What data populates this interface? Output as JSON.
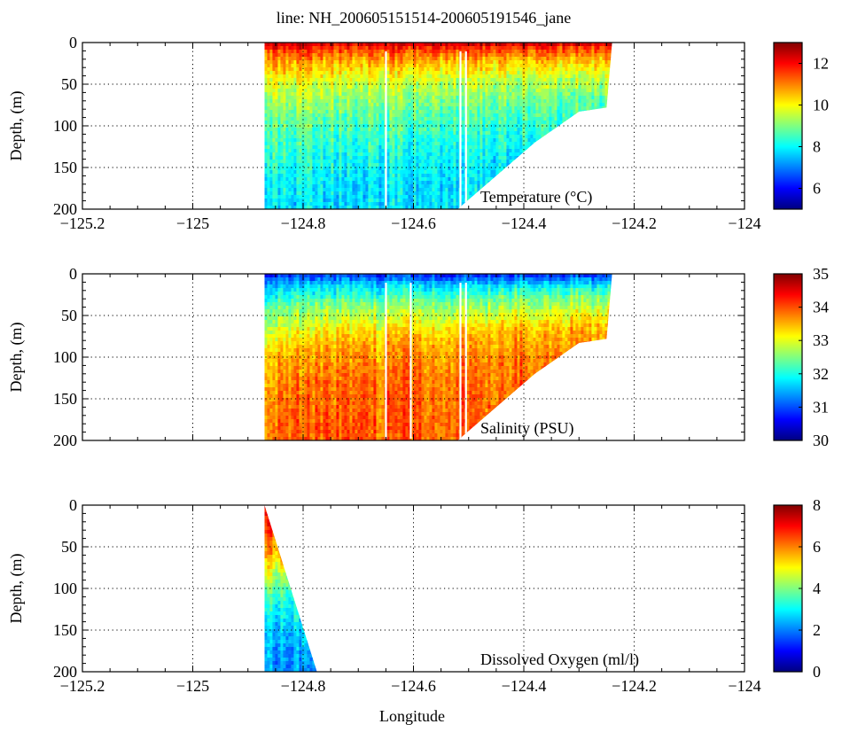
{
  "figure": {
    "title": "line: NH_200605151514-200605191546_jane",
    "xlabel": "Longitude"
  },
  "chart_data": [
    {
      "type": "heatmap",
      "id": "temperature",
      "variable_label": "Temperature (°C)",
      "ylabel": "Depth, (m)",
      "xlim": [
        -125.2,
        -124.0
      ],
      "ylim": [
        0,
        200
      ],
      "xticks": [
        -125.2,
        -125,
        -124.8,
        -124.6,
        -124.4,
        -124.2,
        -124
      ],
      "xtick_labels": [
        "−125.2",
        "−125",
        "−124.8",
        "−124.6",
        "−124.4",
        "−124.2",
        "−124"
      ],
      "yticks": [
        0,
        50,
        100,
        150,
        200
      ],
      "ytick_labels": [
        "0",
        "50",
        "100",
        "150",
        "200"
      ],
      "colorbar": {
        "min": 5,
        "max": 13,
        "ticks": [
          6,
          8,
          10,
          12
        ],
        "tick_labels": [
          "6",
          "8",
          "10",
          "12"
        ],
        "colormap": "jet"
      },
      "data_extent": {
        "lon_min": -124.87,
        "lon_max": -124.24,
        "bottom_profile": [
          [
            -124.87,
            200
          ],
          [
            -124.52,
            200
          ],
          [
            -124.45,
            160
          ],
          [
            -124.38,
            120
          ],
          [
            -124.3,
            83
          ],
          [
            -124.25,
            78
          ],
          [
            -124.24,
            0
          ]
        ]
      },
      "depth_profile": [
        [
          0,
          12.5
        ],
        [
          10,
          11.5
        ],
        [
          30,
          10.5
        ],
        [
          60,
          9.5
        ],
        [
          100,
          8.8
        ],
        [
          150,
          8.2
        ],
        [
          200,
          7.8
        ]
      ],
      "gaps": [
        -124.65,
        -124.515,
        -124.505
      ],
      "grid": true
    },
    {
      "type": "heatmap",
      "id": "salinity",
      "variable_label": "Salinity (PSU)",
      "ylabel": "Depth, (m)",
      "xlim": [
        -125.2,
        -124.0
      ],
      "ylim": [
        0,
        200
      ],
      "xticks": [
        -125.2,
        -125,
        -124.8,
        -124.6,
        -124.4,
        -124.2,
        -124
      ],
      "yticks": [
        0,
        50,
        100,
        150,
        200
      ],
      "ytick_labels": [
        "0",
        "50",
        "100",
        "150",
        "200"
      ],
      "colorbar": {
        "min": 30,
        "max": 35,
        "ticks": [
          30,
          31,
          32,
          33,
          34,
          35
        ],
        "tick_labels": [
          "30",
          "31",
          "32",
          "33",
          "34",
          "35"
        ],
        "colormap": "jet"
      },
      "data_extent": {
        "lon_min": -124.87,
        "lon_max": -124.24,
        "bottom_profile": [
          [
            -124.87,
            200
          ],
          [
            -124.52,
            200
          ],
          [
            -124.45,
            160
          ],
          [
            -124.38,
            120
          ],
          [
            -124.3,
            83
          ],
          [
            -124.25,
            78
          ],
          [
            -124.24,
            0
          ]
        ]
      },
      "depth_profile": [
        [
          0,
          30.8
        ],
        [
          15,
          31.6
        ],
        [
          40,
          32.4
        ],
        [
          70,
          33.0
        ],
        [
          100,
          33.5
        ],
        [
          150,
          33.8
        ],
        [
          200,
          33.9
        ]
      ],
      "gaps": [
        -124.65,
        -124.605,
        -124.515,
        -124.505
      ],
      "grid": true
    },
    {
      "type": "heatmap",
      "id": "oxygen",
      "variable_label": "Dissolved Oxygen (ml/l)",
      "ylabel": "Depth, (m)",
      "xlim": [
        -125.2,
        -124.0
      ],
      "ylim": [
        0,
        200
      ],
      "xticks": [
        -125.2,
        -125,
        -124.8,
        -124.6,
        -124.4,
        -124.2,
        -124
      ],
      "xtick_labels": [
        "−125.2",
        "−125",
        "−124.8",
        "−124.6",
        "−124.4",
        "−124.2",
        "−124"
      ],
      "yticks": [
        0,
        50,
        100,
        150,
        200
      ],
      "ytick_labels": [
        "0",
        "50",
        "100",
        "150",
        "200"
      ],
      "colorbar": {
        "min": 0,
        "max": 8,
        "ticks": [
          0,
          2,
          4,
          6,
          8
        ],
        "tick_labels": [
          "0",
          "2",
          "4",
          "6",
          "8"
        ],
        "colormap": "jet"
      },
      "data_extent": {
        "lon_min": -124.87,
        "lon_max": -124.775,
        "bottom_profile": [
          [
            -124.87,
            200
          ],
          [
            -124.775,
            200
          ]
        ]
      },
      "depth_profile": [
        [
          0,
          7.0
        ],
        [
          30,
          6.4
        ],
        [
          60,
          5.6
        ],
        [
          80,
          4.6
        ],
        [
          110,
          3.4
        ],
        [
          150,
          2.5
        ],
        [
          200,
          2.1
        ]
      ],
      "gaps": [],
      "grid": true
    }
  ]
}
